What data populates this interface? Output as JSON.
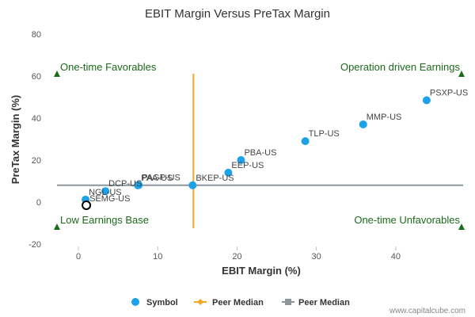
{
  "chart_data": {
    "type": "scatter",
    "title": "EBIT Margin Versus PreTax Margin",
    "xlabel": "EBIT Margin (%)",
    "ylabel": "PreTax Margin (%)",
    "xlim": [
      -3.5,
      49
    ],
    "ylim": [
      -20,
      80
    ],
    "xticks": [
      0,
      10,
      20,
      30,
      40
    ],
    "yticks": [
      -20,
      0,
      20,
      40,
      60,
      80
    ],
    "points": [
      {
        "label": "PSXP-US",
        "x": 43.9,
        "y": 48.5
      },
      {
        "label": "MMP-US",
        "x": 35.9,
        "y": 37.0
      },
      {
        "label": "TLP-US",
        "x": 28.6,
        "y": 29.0
      },
      {
        "label": "PBA-US",
        "x": 20.5,
        "y": 20.0
      },
      {
        "label": "EEP-US",
        "x": 18.9,
        "y": 14.0
      },
      {
        "label": "BKEP-US",
        "x": 14.4,
        "y": 8.0
      },
      {
        "label": "PAGP-US",
        "x": 7.6,
        "y": 8.1
      },
      {
        "label": "PAA-US",
        "x": 7.5,
        "y": 8.0
      },
      {
        "label": "DCP-US",
        "x": 3.4,
        "y": 5.2
      },
      {
        "label": "NGL-US",
        "x": 0.9,
        "y": 1.2
      }
    ],
    "highlight": {
      "label": "SEMG-US",
      "x": 1.0,
      "y": -1.5
    },
    "peer_median_x": 14.5,
    "peer_median_y": 8.0,
    "quadrant_labels": {
      "top_left": "One-time Favorables",
      "top_right": "Operation driven Earnings",
      "bottom_left": "Low Earnings Base",
      "bottom_right": "One-time Unfavorables"
    },
    "legend": [
      "Symbol",
      "Peer Median",
      "Peer Median"
    ],
    "colors": {
      "symbol": "#1da1e8",
      "peer_median_x": "#f5a623",
      "peer_median_y": "#8c969e",
      "quadrant": "#1a6b1a",
      "highlight": "#000000"
    }
  },
  "credit": "www.capitalcube.com"
}
